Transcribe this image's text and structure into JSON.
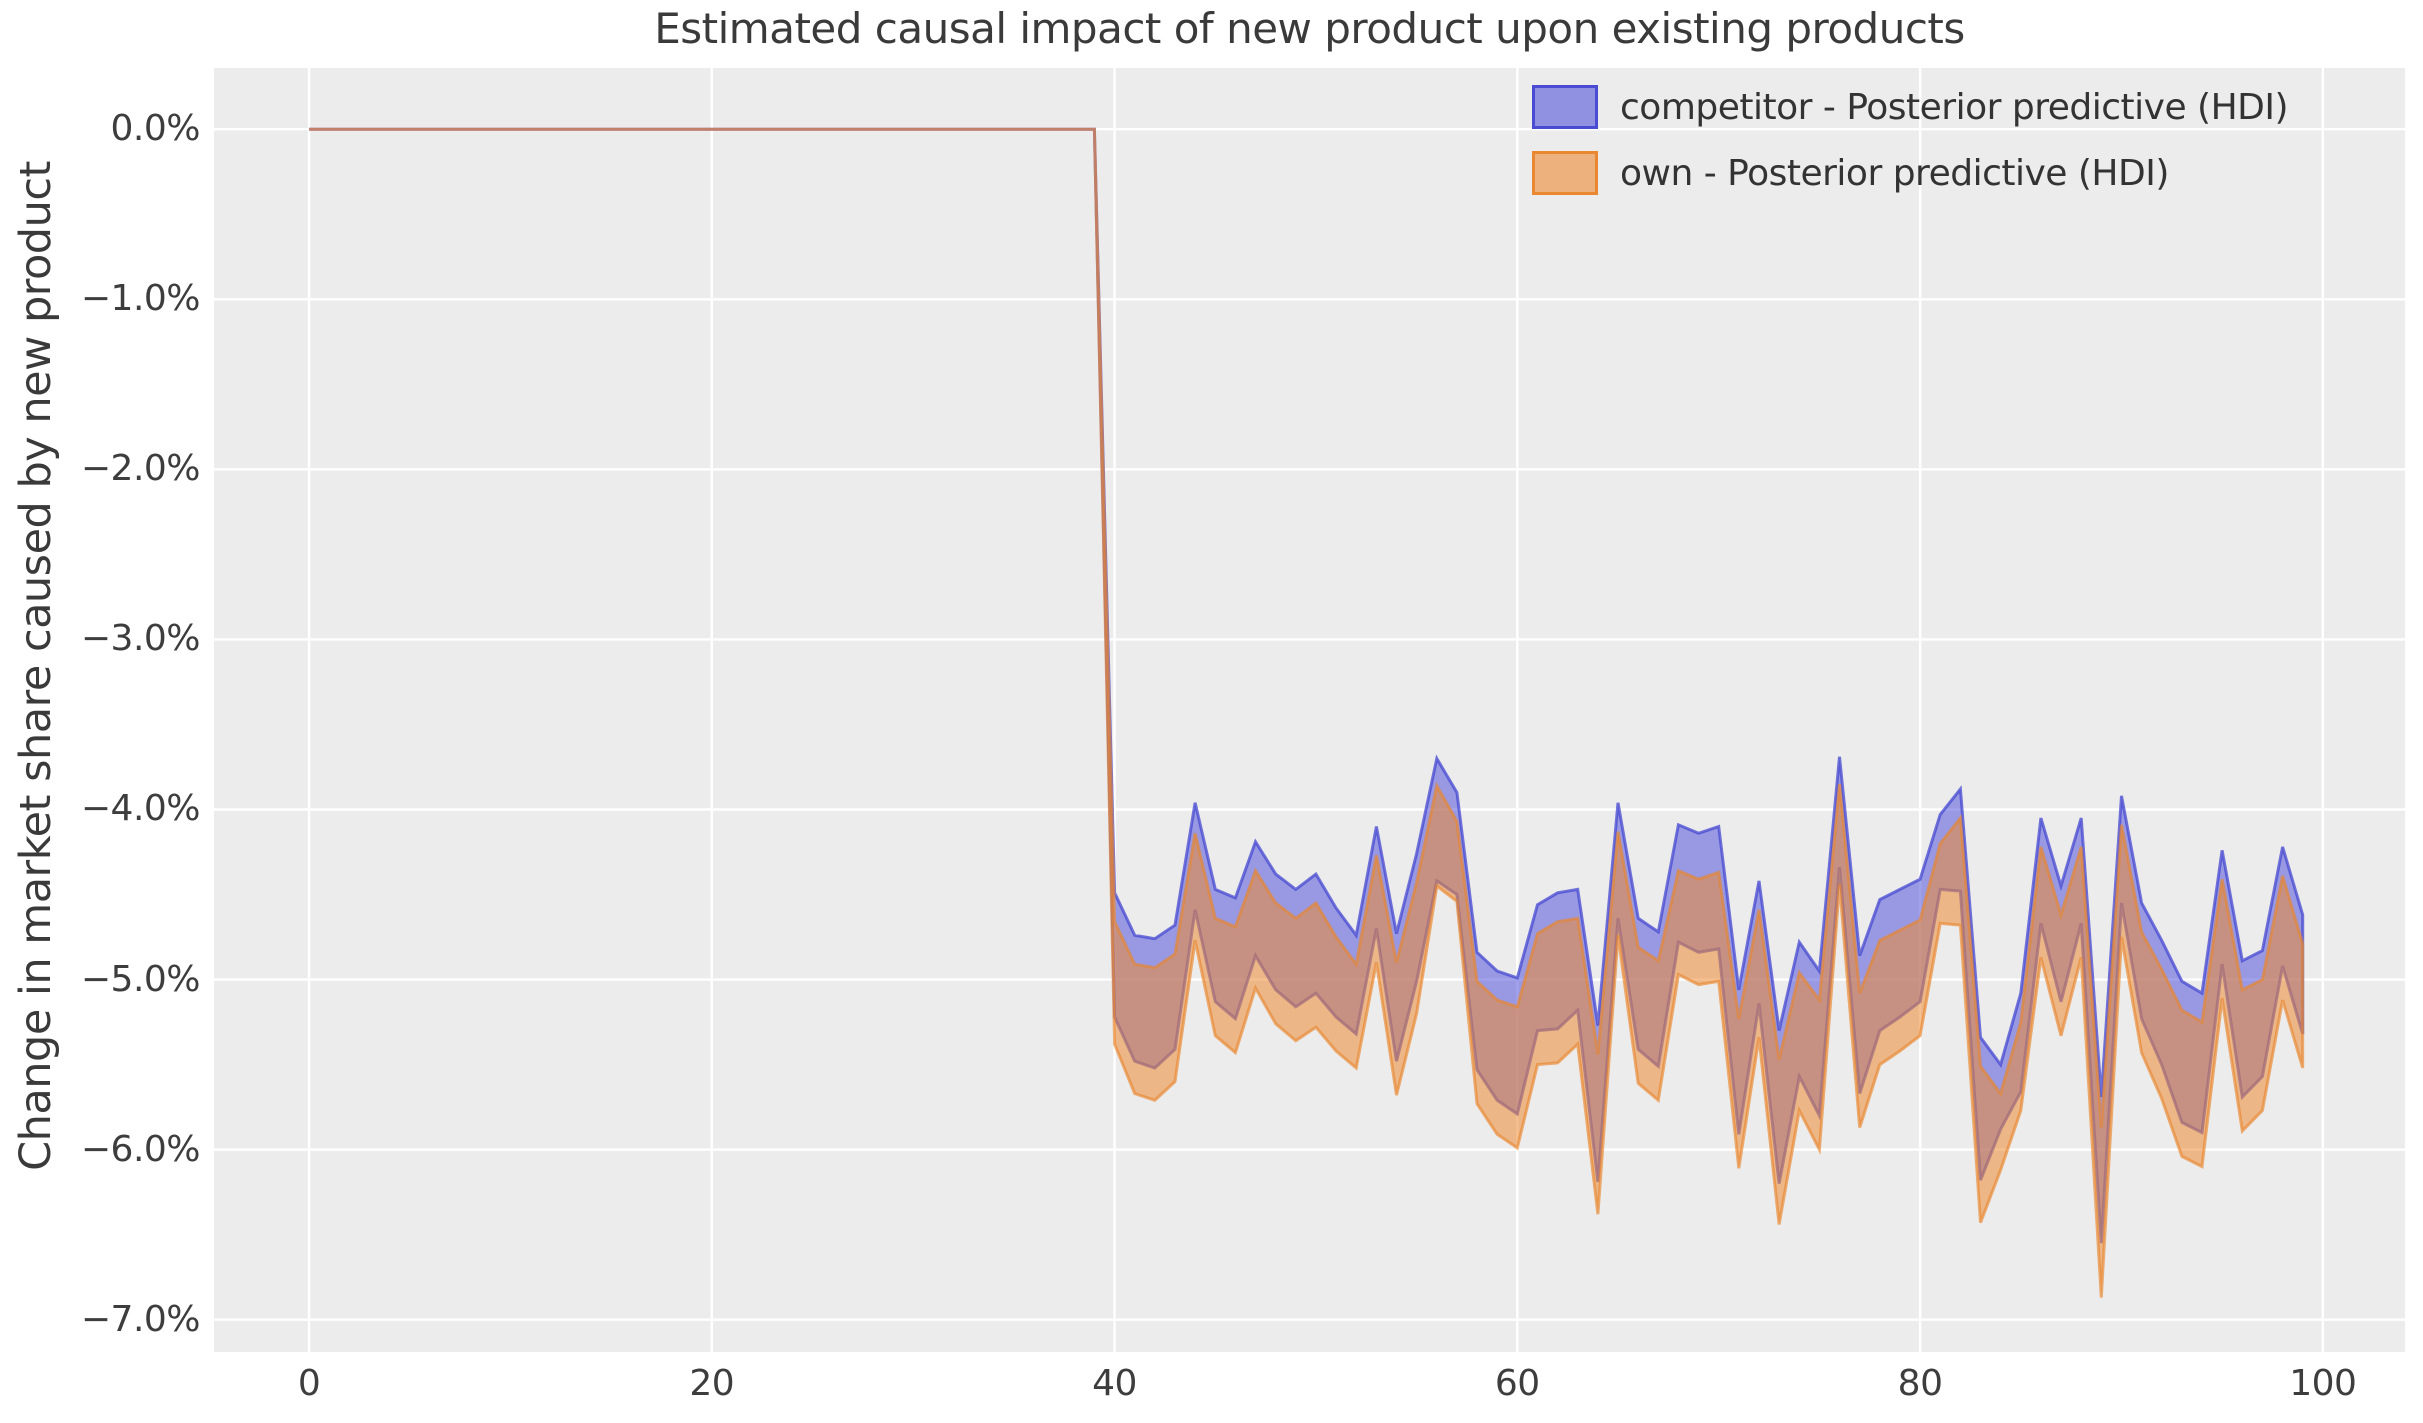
{
  "figure": {
    "background_color": "#ffffff",
    "axes_background_color": "#ececec",
    "grid_color": "#ffffff",
    "title_color": "#3a3a3a",
    "tick_label_color": "#3d3d3d"
  },
  "chart_data": {
    "type": "area",
    "title": "Estimated causal impact of new product upon existing products",
    "xlabel": "",
    "ylabel": "Change in market share caused by new product",
    "xlim": [
      -4.72,
      104.08
    ],
    "ylim": [
      -7.19,
      0.36
    ],
    "grid": true,
    "legend_position": "upper right",
    "x_tick_values": [
      0,
      20,
      40,
      60,
      80,
      100
    ],
    "x_tick_labels": [
      "0",
      "20",
      "40",
      "60",
      "80",
      "100"
    ],
    "y_tick_values": [
      0,
      -1,
      -2,
      -3,
      -4,
      -5,
      -6,
      -7
    ],
    "y_tick_labels": [
      "0.0%",
      "−1.0%",
      "−2.0%",
      "−3.0%",
      "−4.0%",
      "−5.0%",
      "−6.0%",
      "−7.0%"
    ],
    "x": {
      "start": 0,
      "end": 99,
      "step": 1
    },
    "intervention_index": 40,
    "pre_period_value": 0,
    "units": "percent",
    "series": [
      {
        "name": "competitor - Posterior predictive (HDI)",
        "band_type": "hdi",
        "color": "#5456db",
        "fill_alpha": 0.55,
        "edge_color": "#4648d2",
        "edge_alpha": 0.75,
        "hdi_upper": [
          0,
          0,
          0,
          0,
          0,
          0,
          0,
          0,
          0,
          0,
          0,
          0,
          0,
          0,
          0,
          0,
          0,
          0,
          0,
          0,
          0,
          0,
          0,
          0,
          0,
          0,
          0,
          0,
          0,
          0,
          0,
          0,
          0,
          0,
          0,
          0,
          0,
          0,
          0,
          0,
          -4.49,
          -4.74,
          -4.76,
          -4.68,
          -3.96,
          -4.47,
          -4.52,
          -4.19,
          -4.38,
          -4.47,
          -4.38,
          -4.58,
          -4.74,
          -4.1,
          -4.73,
          -4.26,
          -3.7,
          -3.9,
          -4.84,
          -4.95,
          -4.99,
          -4.56,
          -4.49,
          -4.47,
          -5.27,
          -3.96,
          -4.64,
          -4.72,
          -4.09,
          -4.14,
          -4.1,
          -5.06,
          -4.42,
          -5.3,
          -4.78,
          -4.95,
          -3.69,
          -4.86,
          -4.53,
          -4.47,
          -4.41,
          -4.03,
          -3.88,
          -5.34,
          -5.5,
          -5.08,
          -4.05,
          -4.45,
          -4.05,
          -5.69,
          -3.92,
          -4.55,
          -4.77,
          -5.01,
          -5.08,
          -4.24,
          -4.89,
          -4.83,
          -4.22,
          -4.62
        ],
        "hdi_lower": [
          0,
          0,
          0,
          0,
          0,
          0,
          0,
          0,
          0,
          0,
          0,
          0,
          0,
          0,
          0,
          0,
          0,
          0,
          0,
          0,
          0,
          0,
          0,
          0,
          0,
          0,
          0,
          0,
          0,
          0,
          0,
          0,
          0,
          0,
          0,
          0,
          0,
          0,
          0,
          0,
          -5.22,
          -5.48,
          -5.52,
          -5.41,
          -4.59,
          -5.13,
          -5.23,
          -4.86,
          -5.06,
          -5.16,
          -5.08,
          -5.22,
          -5.32,
          -4.7,
          -5.48,
          -5.01,
          -4.42,
          -4.5,
          -5.53,
          -5.71,
          -5.79,
          -5.3,
          -5.29,
          -5.18,
          -6.19,
          -4.64,
          -5.41,
          -5.51,
          -4.78,
          -4.84,
          -4.82,
          -5.91,
          -5.14,
          -6.2,
          -5.57,
          -5.8,
          -4.34,
          -5.67,
          -5.3,
          -5.22,
          -5.13,
          -4.47,
          -4.48,
          -6.18,
          -5.88,
          -5.66,
          -4.67,
          -5.13,
          -4.67,
          -6.55,
          -4.55,
          -5.23,
          -5.5,
          -5.84,
          -5.9,
          -4.91,
          -5.69,
          -5.57,
          -4.92,
          -5.32
        ]
      },
      {
        "name": "own - Posterior predictive (HDI)",
        "band_type": "hdi",
        "color": "#ec8a33",
        "fill_alpha": 0.55,
        "edge_color": "#e9862d",
        "edge_alpha": 0.65,
        "hdi_upper": [
          0,
          0,
          0,
          0,
          0,
          0,
          0,
          0,
          0,
          0,
          0,
          0,
          0,
          0,
          0,
          0,
          0,
          0,
          0,
          0,
          0,
          0,
          0,
          0,
          0,
          0,
          0,
          0,
          0,
          0,
          0,
          0,
          0,
          0,
          0,
          0,
          0,
          0,
          0,
          0,
          -4.66,
          -4.91,
          -4.93,
          -4.85,
          -4.14,
          -4.64,
          -4.69,
          -4.36,
          -4.55,
          -4.64,
          -4.55,
          -4.75,
          -4.91,
          -4.27,
          -4.9,
          -4.43,
          -3.86,
          -4.07,
          -5.01,
          -5.12,
          -5.16,
          -4.73,
          -4.66,
          -4.64,
          -5.44,
          -4.13,
          -4.81,
          -4.89,
          -4.36,
          -4.41,
          -4.37,
          -5.23,
          -4.59,
          -5.47,
          -4.96,
          -5.12,
          -3.85,
          -5.08,
          -4.77,
          -4.71,
          -4.65,
          -4.2,
          -4.05,
          -5.51,
          -5.67,
          -5.25,
          -4.22,
          -4.62,
          -4.22,
          -5.87,
          -4.09,
          -4.72,
          -4.94,
          -5.18,
          -5.25,
          -4.41,
          -5.06,
          -5.0,
          -4.39,
          -4.79
        ],
        "hdi_lower": [
          0,
          0,
          0,
          0,
          0,
          0,
          0,
          0,
          0,
          0,
          0,
          0,
          0,
          0,
          0,
          0,
          0,
          0,
          0,
          0,
          0,
          0,
          0,
          0,
          0,
          0,
          0,
          0,
          0,
          0,
          0,
          0,
          0,
          0,
          0,
          0,
          0,
          0,
          0,
          0,
          -5.38,
          -5.67,
          -5.71,
          -5.6,
          -4.77,
          -5.33,
          -5.43,
          -5.05,
          -5.26,
          -5.36,
          -5.28,
          -5.42,
          -5.52,
          -4.9,
          -5.68,
          -5.2,
          -4.45,
          -4.54,
          -5.73,
          -5.91,
          -5.99,
          -5.5,
          -5.49,
          -5.38,
          -6.38,
          -4.74,
          -5.61,
          -5.71,
          -4.97,
          -5.03,
          -5.01,
          -6.11,
          -5.34,
          -6.44,
          -5.77,
          -6.0,
          -4.44,
          -5.87,
          -5.5,
          -5.42,
          -5.33,
          -4.67,
          -4.68,
          -6.43,
          -6.12,
          -5.77,
          -4.87,
          -5.33,
          -4.87,
          -6.87,
          -4.75,
          -5.43,
          -5.7,
          -6.04,
          -6.1,
          -5.11,
          -5.89,
          -5.77,
          -5.12,
          -5.52
        ]
      }
    ]
  }
}
